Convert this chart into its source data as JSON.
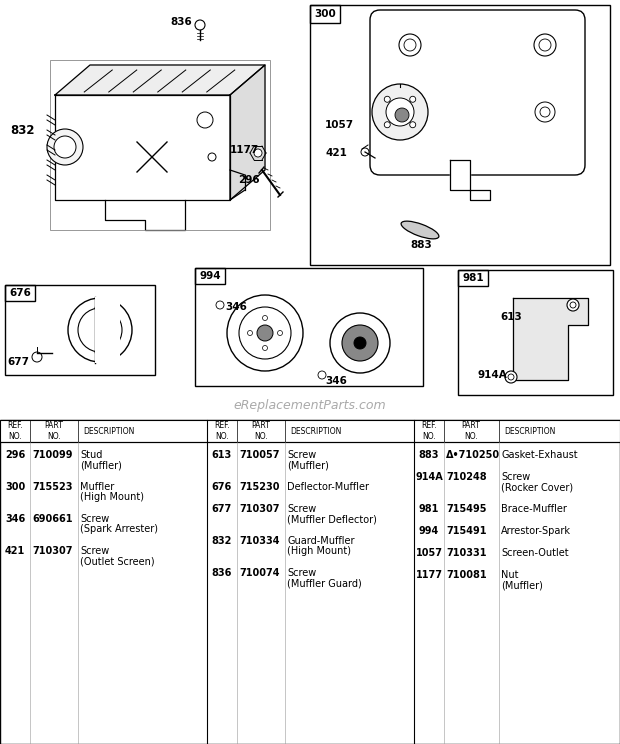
{
  "bg_color": "#ffffff",
  "watermark": "eReplacementParts.com",
  "table_header_cols": [
    "REF.\nNO.",
    "PART\nNO.",
    "DESCRIPTION"
  ],
  "col1_rows": [
    [
      "296",
      "710099",
      "Stud",
      "(Muffler)"
    ],
    [
      "300",
      "715523",
      "Muffler",
      "(High Mount)"
    ],
    [
      "346",
      "690661",
      "Screw",
      "(Spark Arrester)"
    ],
    [
      "421",
      "710307",
      "Screw",
      "(Outlet Screen)"
    ]
  ],
  "col2_rows": [
    [
      "613",
      "710057",
      "Screw",
      "(Muffler)"
    ],
    [
      "676",
      "715230",
      "Deflector-Muffler",
      ""
    ],
    [
      "677",
      "710307",
      "Screw",
      "(Muffler Deflector)"
    ],
    [
      "832",
      "710334",
      "Guard-Muffler",
      "(High Mount)"
    ],
    [
      "836",
      "710074",
      "Screw",
      "(Muffler Guard)"
    ]
  ],
  "col3_rows": [
    [
      "883",
      "Δ•710250",
      "Gasket-Exhaust",
      ""
    ],
    [
      "914A",
      "710248",
      "Screw",
      "(Rocker Cover)"
    ],
    [
      "981",
      "715495",
      "Brace-Muffler",
      ""
    ],
    [
      "994",
      "715491",
      "Arrestor-Spark",
      ""
    ],
    [
      "1057",
      "710331",
      "Screen-Outlet",
      ""
    ],
    [
      "1177",
      "710081",
      "Nut",
      "(Muffler)"
    ]
  ],
  "lc": "#000000",
  "fc_light": "#f0f0f0",
  "fc_white": "#ffffff"
}
